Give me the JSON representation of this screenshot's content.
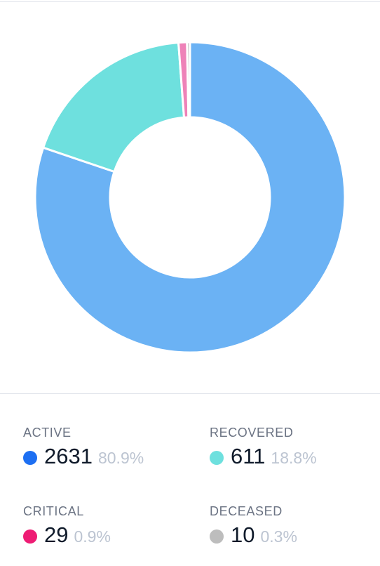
{
  "chart_data": {
    "type": "pie",
    "variant": "donut",
    "categories": [
      "ACTIVE",
      "RECOVERED",
      "CRITICAL",
      "DECEASED"
    ],
    "values": [
      2631,
      611,
      29,
      10
    ],
    "percents": [
      "80.9%",
      "18.8%",
      "0.9%",
      "0.3%"
    ],
    "colors": [
      "#6bb2f4",
      "#6ee0de",
      "#ee82b8",
      "#bdbdbd"
    ],
    "start": "12 o'clock, clockwise",
    "title": ""
  },
  "legend": [
    {
      "label": "ACTIVE",
      "value": "2631",
      "pct": "80.9%",
      "dot_color": "#1d6ff2"
    },
    {
      "label": "RECOVERED",
      "value": "611",
      "pct": "18.8%",
      "dot_color": "#6ee0de"
    },
    {
      "label": "CRITICAL",
      "value": "29",
      "pct": "0.9%",
      "dot_color": "#ee1c74"
    },
    {
      "label": "DECEASED",
      "value": "10",
      "pct": "0.3%",
      "dot_color": "#bdbdbd"
    }
  ]
}
